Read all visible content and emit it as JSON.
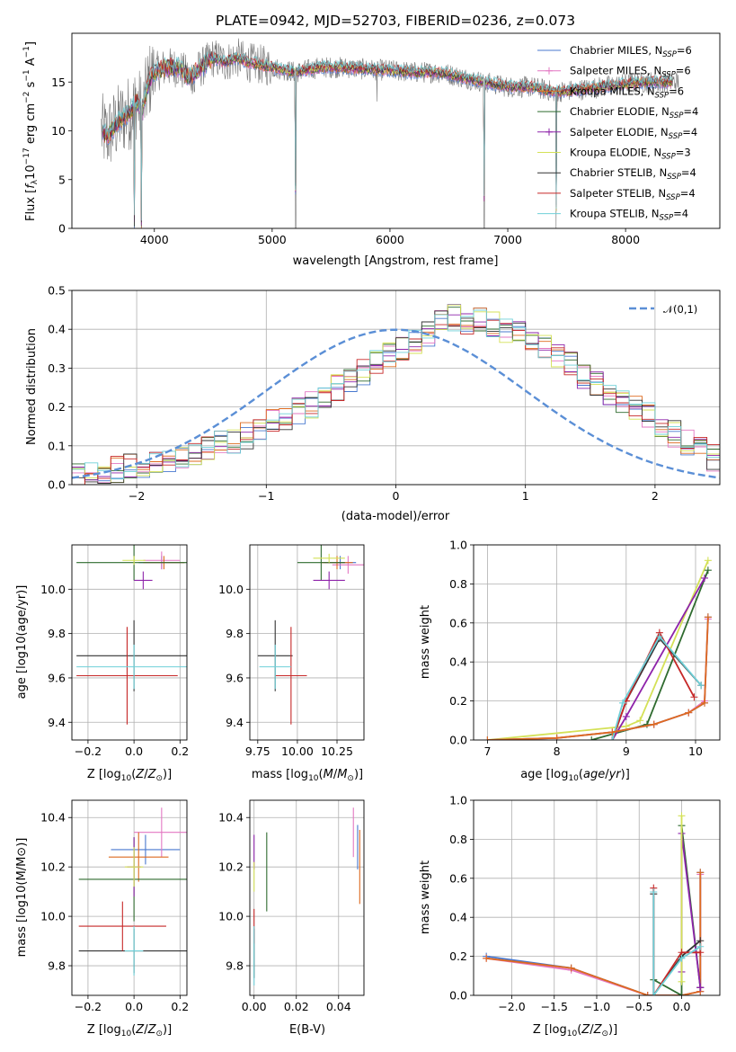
{
  "chart_data": [
    {
      "type": "line",
      "title": "PLATE=0942, MJD=52703, FIBERID=0236, z=0.073",
      "xlabel": "wavelength [Angstrom, rest frame]",
      "ylabel": "Flux [f_λ10^-17 erg cm^-2 s^-1 A^-1]",
      "xlim": [
        3300,
        8800
      ],
      "ylim": [
        0,
        20
      ],
      "xticks": [
        4000,
        5000,
        6000,
        7000,
        8000
      ],
      "yticks": [
        0,
        5,
        10,
        15
      ],
      "legend_position": "top-right",
      "series": [
        {
          "name": "Chabrier MILES, N_SSP=6",
          "color": "#4878cf"
        },
        {
          "name": "Salpeter MILES, N_SSP=6",
          "color": "#e377c2"
        },
        {
          "name": "Kroupa MILES, N_SSP=6",
          "color": "#dd6a1f"
        },
        {
          "name": "Chabrier ELODIE, N_SSP=4",
          "color": "#2f6b2f"
        },
        {
          "name": "Salpeter ELODIE, N_SSP=4",
          "color": "#8e24aa"
        },
        {
          "name": "Kroupa ELODIE, N_SSP=3",
          "color": "#d4e157"
        },
        {
          "name": "Chabrier STELIB, N_SSP=4",
          "color": "#333333"
        },
        {
          "name": "Salpeter STELIB, N_SSP=4",
          "color": "#c62828"
        },
        {
          "name": "Kroupa STELIB, N_SSP=4",
          "color": "#6fd0d8"
        }
      ],
      "data_color": "#777777",
      "model_profile": {
        "x": [
          3550,
          3600,
          3700,
          3750,
          3800,
          3850,
          3900,
          3950,
          4000,
          4100,
          4200,
          4300,
          4400,
          4500,
          4600,
          4700,
          4800,
          4900,
          5000,
          5200,
          5400,
          5600,
          5800,
          6000,
          6200,
          6400,
          6500,
          6600,
          6800,
          7000,
          7200,
          7400,
          7600,
          7800,
          8000,
          8200,
          8400
        ],
        "y": [
          10.0,
          9.5,
          11.0,
          11.5,
          12.0,
          13.0,
          12.0,
          15.0,
          16.0,
          16.5,
          16.5,
          15.5,
          16.5,
          17.5,
          17.0,
          17.5,
          17.0,
          16.8,
          16.5,
          16.0,
          16.5,
          16.5,
          16.3,
          16.2,
          16.0,
          16.0,
          15.8,
          15.5,
          15.0,
          14.5,
          14.5,
          14.0,
          14.2,
          14.5,
          14.8,
          15.0,
          15.0
        ]
      },
      "absorption_features": [
        {
          "x": 3830,
          "depth_to": 0
        },
        {
          "x": 3890,
          "depth_to": 0
        },
        {
          "x": 4340,
          "depth_to": 14
        },
        {
          "x": 5200,
          "depth_to": 0
        },
        {
          "x": 5890,
          "depth_to": 13
        },
        {
          "x": 6800,
          "depth_to": 0
        },
        {
          "x": 7410,
          "depth_to": 0
        }
      ]
    },
    {
      "type": "line",
      "xlabel": "(data-model)/error",
      "ylabel": "Normed distribution",
      "xlim": [
        -2.5,
        2.5
      ],
      "ylim": [
        0,
        0.5
      ],
      "xticks": [
        -2,
        -1,
        0,
        1,
        2
      ],
      "yticks": [
        0.0,
        0.1,
        0.2,
        0.3,
        0.4,
        0.5
      ],
      "legend": [
        "𝒩(0,1)"
      ],
      "legend_position": "top-right",
      "reference_curve": {
        "name": "𝒩(0,1)",
        "color": "#5b8fd6",
        "style": "dashed"
      },
      "histogram": {
        "bin_edges_range": [
          -2.5,
          2.5
        ],
        "bin_width": 0.1,
        "center_values": [
          0.02,
          0.025,
          0.03,
          0.04,
          0.045,
          0.05,
          0.055,
          0.065,
          0.075,
          0.085,
          0.095,
          0.105,
          0.115,
          0.125,
          0.14,
          0.16,
          0.175,
          0.19,
          0.205,
          0.225,
          0.25,
          0.27,
          0.29,
          0.31,
          0.33,
          0.35,
          0.37,
          0.39,
          0.42,
          0.43,
          0.42,
          0.42,
          0.41,
          0.4,
          0.39,
          0.37,
          0.35,
          0.33,
          0.31,
          0.28,
          0.26,
          0.24,
          0.22,
          0.2,
          0.18,
          0.15,
          0.13,
          0.11,
          0.09,
          0.07
        ]
      }
    },
    {
      "type": "scatter",
      "xlabel": "Z [log10(Z/Z⊙)]",
      "ylabel": "age  [log10(age/yr)]",
      "xlim": [
        -0.27,
        0.23
      ],
      "ylim": [
        9.32,
        10.2
      ],
      "xticks": [
        -0.2,
        0.0,
        0.2
      ],
      "yticks": [
        9.4,
        9.6,
        9.8,
        10.0
      ],
      "crosses": [
        {
          "series": "Chabrier MILES",
          "x": 0.12,
          "y": 10.12,
          "xerr": 0.1,
          "yerr": 0.03
        },
        {
          "series": "Salpeter MILES",
          "x": 0.12,
          "y": 10.13,
          "xerr": 0.08,
          "yerr": 0.04
        },
        {
          "series": "Kroupa MILES",
          "x": 0.13,
          "y": 10.12,
          "xerr": 0.09,
          "yerr": 0.03
        },
        {
          "series": "Chabrier ELODIE",
          "x": 0.0,
          "y": 10.12,
          "xerr": 0.25,
          "yerr": 0.08
        },
        {
          "series": "Salpeter ELODIE",
          "x": 0.04,
          "y": 10.04,
          "xerr": 0.04,
          "yerr": 0.04
        },
        {
          "series": "Kroupa ELODIE",
          "x": 0.0,
          "y": 10.13,
          "xerr": 0.05,
          "yerr": 0.02
        },
        {
          "series": "Chabrier STELIB",
          "x": 0.0,
          "y": 9.7,
          "xerr": 0.25,
          "yerr": 0.16
        },
        {
          "series": "Salpeter STELIB",
          "x": -0.03,
          "y": 9.61,
          "xerr": 0.22,
          "yerr": 0.22
        },
        {
          "series": "Kroupa STELIB",
          "x": 0.0,
          "y": 9.65,
          "xerr": 0.25,
          "yerr": 0.1
        }
      ]
    },
    {
      "type": "scatter",
      "xlabel": "mass [log10(M/M⊙)]",
      "xlim": [
        9.7,
        10.42
      ],
      "ylim": [
        9.32,
        10.2
      ],
      "xticks": [
        9.75,
        10.0,
        10.25
      ],
      "yticks": [
        9.4,
        9.6,
        9.8,
        10.0
      ],
      "crosses": [
        {
          "series": "Chabrier MILES",
          "x": 10.27,
          "y": 10.12,
          "xerr": 0.1,
          "yerr": 0.03
        },
        {
          "series": "Salpeter MILES",
          "x": 10.32,
          "y": 10.11,
          "xerr": 0.1,
          "yerr": 0.04
        },
        {
          "series": "Kroupa MILES",
          "x": 10.25,
          "y": 10.12,
          "xerr": 0.1,
          "yerr": 0.03
        },
        {
          "series": "Chabrier ELODIE",
          "x": 10.15,
          "y": 10.12,
          "xerr": 0.15,
          "yerr": 0.08
        },
        {
          "series": "Salpeter ELODIE",
          "x": 10.2,
          "y": 10.04,
          "xerr": 0.1,
          "yerr": 0.04
        },
        {
          "series": "Kroupa ELODIE",
          "x": 10.2,
          "y": 10.14,
          "xerr": 0.1,
          "yerr": 0.02
        },
        {
          "series": "Chabrier STELIB",
          "x": 9.86,
          "y": 9.7,
          "xerr": 0.11,
          "yerr": 0.16
        },
        {
          "series": "Salpeter STELIB",
          "x": 9.96,
          "y": 9.61,
          "xerr": 0.1,
          "yerr": 0.22
        },
        {
          "series": "Kroupa STELIB",
          "x": 9.86,
          "y": 9.65,
          "xerr": 0.1,
          "yerr": 0.1
        }
      ]
    },
    {
      "type": "line",
      "xlabel": "age  [log10(age/yr)]",
      "ylabel": "mass weight",
      "xlim": [
        6.8,
        10.35
      ],
      "ylim": [
        0,
        1
      ],
      "xticks": [
        7,
        8,
        9,
        10
      ],
      "yticks": [
        0.0,
        0.2,
        0.4,
        0.6,
        0.8,
        1.0
      ],
      "series": [
        {
          "name": "Kroupa ELODIE",
          "x": [
            7.0,
            9.0,
            9.2,
            10.18
          ],
          "y": [
            0.0,
            0.07,
            0.1,
            0.92
          ]
        },
        {
          "name": "Chabrier ELODIE",
          "x": [
            8.5,
            9.3,
            10.18
          ],
          "y": [
            0.0,
            0.08,
            0.87
          ]
        },
        {
          "name": "Salpeter ELODIE",
          "x": [
            8.8,
            9.0,
            10.13
          ],
          "y": [
            0.0,
            0.12,
            0.83
          ]
        },
        {
          "name": "Chabrier STELIB",
          "x": [
            8.8,
            9.0,
            9.48,
            10.08
          ],
          "y": [
            0.0,
            0.2,
            0.52,
            0.28
          ]
        },
        {
          "name": "Salpeter STELIB",
          "x": [
            8.8,
            9.0,
            9.48,
            9.98
          ],
          "y": [
            0.0,
            0.2,
            0.55,
            0.22
          ]
        },
        {
          "name": "Kroupa STELIB",
          "x": [
            8.8,
            8.95,
            9.48,
            10.08
          ],
          "y": [
            0.0,
            0.19,
            0.53,
            0.28
          ]
        },
        {
          "name": "Chabrier MILES",
          "x": [
            7.0,
            8.0,
            8.8,
            9.4,
            9.9,
            10.13,
            10.18
          ],
          "y": [
            0.0,
            0.01,
            0.04,
            0.08,
            0.14,
            0.19,
            0.63
          ]
        },
        {
          "name": "Salpeter MILES",
          "x": [
            7.0,
            8.0,
            8.8,
            9.4,
            9.9,
            10.13,
            10.18
          ],
          "y": [
            0.0,
            0.01,
            0.04,
            0.08,
            0.14,
            0.2,
            0.62
          ]
        },
        {
          "name": "Kroupa MILES",
          "x": [
            7.0,
            8.0,
            8.8,
            9.4,
            9.9,
            10.13,
            10.18
          ],
          "y": [
            0.0,
            0.01,
            0.04,
            0.08,
            0.14,
            0.19,
            0.63
          ]
        }
      ]
    },
    {
      "type": "scatter",
      "xlabel": "Z [log10(Z/Z⊙)]",
      "ylabel": "mass [log10(M/M⊙)]",
      "xlim": [
        -0.27,
        0.23
      ],
      "ylim": [
        9.68,
        10.47
      ],
      "xticks": [
        -0.2,
        0.0,
        0.2
      ],
      "yticks": [
        9.8,
        10.0,
        10.2,
        10.4
      ],
      "crosses": [
        {
          "series": "Chabrier MILES",
          "x": 0.05,
          "y": 10.27,
          "xerr": 0.15,
          "yerr": 0.06
        },
        {
          "series": "Salpeter MILES",
          "x": 0.12,
          "y": 10.34,
          "xerr": 0.12,
          "yerr": 0.1
        },
        {
          "series": "Kroupa MILES",
          "x": 0.02,
          "y": 10.24,
          "xerr": 0.13,
          "yerr": 0.1
        },
        {
          "series": "Chabrier ELODIE",
          "x": 0.0,
          "y": 10.15,
          "xerr": 0.24,
          "yerr": 0.17
        },
        {
          "series": "Salpeter ELODIE",
          "x": 0.0,
          "y": 10.2,
          "xerr": 0.03,
          "yerr": 0.12
        },
        {
          "series": "Kroupa ELODIE",
          "x": 0.0,
          "y": 10.2,
          "xerr": 0.04,
          "yerr": 0.08
        },
        {
          "series": "Chabrier STELIB",
          "x": 0.0,
          "y": 9.86,
          "xerr": 0.24,
          "yerr": 0.09
        },
        {
          "series": "Salpeter STELIB",
          "x": -0.05,
          "y": 9.96,
          "xerr": 0.19,
          "yerr": 0.1
        },
        {
          "series": "Kroupa STELIB",
          "x": 0.0,
          "y": 9.86,
          "xerr": 0.04,
          "yerr": 0.1
        }
      ]
    },
    {
      "type": "scatter",
      "xlabel": "E(B-V)",
      "xlim": [
        -0.002,
        0.052
      ],
      "ylim": [
        9.68,
        10.47
      ],
      "xticks": [
        0.0,
        0.02,
        0.04
      ],
      "yticks": [
        9.8,
        10.0,
        10.2,
        10.4
      ],
      "crosses": [
        {
          "series": "Chabrier MILES",
          "x": 0.049,
          "y": 10.28,
          "yerr": 0.09
        },
        {
          "series": "Salpeter MILES",
          "x": 0.047,
          "y": 10.34,
          "yerr": 0.1
        },
        {
          "series": "Kroupa MILES",
          "x": 0.05,
          "y": 10.2,
          "yerr": 0.15
        },
        {
          "series": "Chabrier ELODIE",
          "x": 0.006,
          "y": 10.18,
          "yerr": 0.16
        },
        {
          "series": "Salpeter ELODIE",
          "x": 0.0,
          "y": 10.26,
          "yerr": 0.07
        },
        {
          "series": "Kroupa ELODIE",
          "x": 0.0,
          "y": 10.16,
          "yerr": 0.06
        },
        {
          "series": "Chabrier STELIB",
          "x": 0.0,
          "y": 9.85,
          "yerr": 0.1
        },
        {
          "series": "Salpeter STELIB",
          "x": 0.0,
          "y": 9.96,
          "yerr": 0.07
        },
        {
          "series": "Kroupa STELIB",
          "x": 0.0,
          "y": 9.84,
          "yerr": 0.12
        }
      ]
    },
    {
      "type": "line",
      "xlabel": "Z [log10(Z/Z⊙)]",
      "ylabel": "mass weight",
      "xlim": [
        -2.45,
        0.45
      ],
      "ylim": [
        0,
        1
      ],
      "xticks": [
        -2.0,
        -1.5,
        -1.0,
        -0.5,
        0.0
      ],
      "yticks": [
        0.0,
        0.2,
        0.4,
        0.6,
        0.8,
        1.0
      ],
      "series": [
        {
          "name": "Chabrier MILES",
          "x": [
            -2.3,
            -1.3,
            -0.4,
            0.0,
            0.22,
            0.22
          ],
          "y": [
            0.2,
            0.14,
            0.0,
            0.0,
            0.02,
            0.63
          ]
        },
        {
          "name": "Salpeter MILES",
          "x": [
            -2.3,
            -1.3,
            -0.4,
            0.0,
            0.22,
            0.22
          ],
          "y": [
            0.19,
            0.13,
            0.0,
            0.0,
            0.02,
            0.62
          ]
        },
        {
          "name": "Kroupa MILES",
          "x": [
            -2.3,
            -1.3,
            -0.4,
            0.0,
            0.22,
            0.22
          ],
          "y": [
            0.19,
            0.14,
            0.0,
            0.0,
            0.02,
            0.63
          ]
        },
        {
          "name": "Chabrier ELODIE",
          "x": [
            -0.33,
            0.0,
            0.0,
            0.22
          ],
          "y": [
            0.08,
            0.0,
            0.87,
            0.04
          ]
        },
        {
          "name": "Salpeter ELODIE",
          "x": [
            0.0,
            0.0,
            0.22,
            0.22
          ],
          "y": [
            0.12,
            0.83,
            0.04,
            0.04
          ]
        },
        {
          "name": "Kroupa ELODIE",
          "x": [
            0.0,
            0.0
          ],
          "y": [
            0.07,
            0.92
          ]
        },
        {
          "name": "Chabrier STELIB",
          "x": [
            -0.33,
            -0.33,
            0.0,
            0.22
          ],
          "y": [
            0.52,
            0.0,
            0.2,
            0.28
          ]
        },
        {
          "name": "Salpeter STELIB",
          "x": [
            -0.33,
            -0.33,
            0.0,
            0.22
          ],
          "y": [
            0.55,
            0.0,
            0.22,
            0.22
          ]
        },
        {
          "name": "Kroupa STELIB",
          "x": [
            -0.33,
            -0.33,
            0.0,
            0.22
          ],
          "y": [
            0.53,
            0.0,
            0.19,
            0.25
          ]
        }
      ]
    }
  ]
}
